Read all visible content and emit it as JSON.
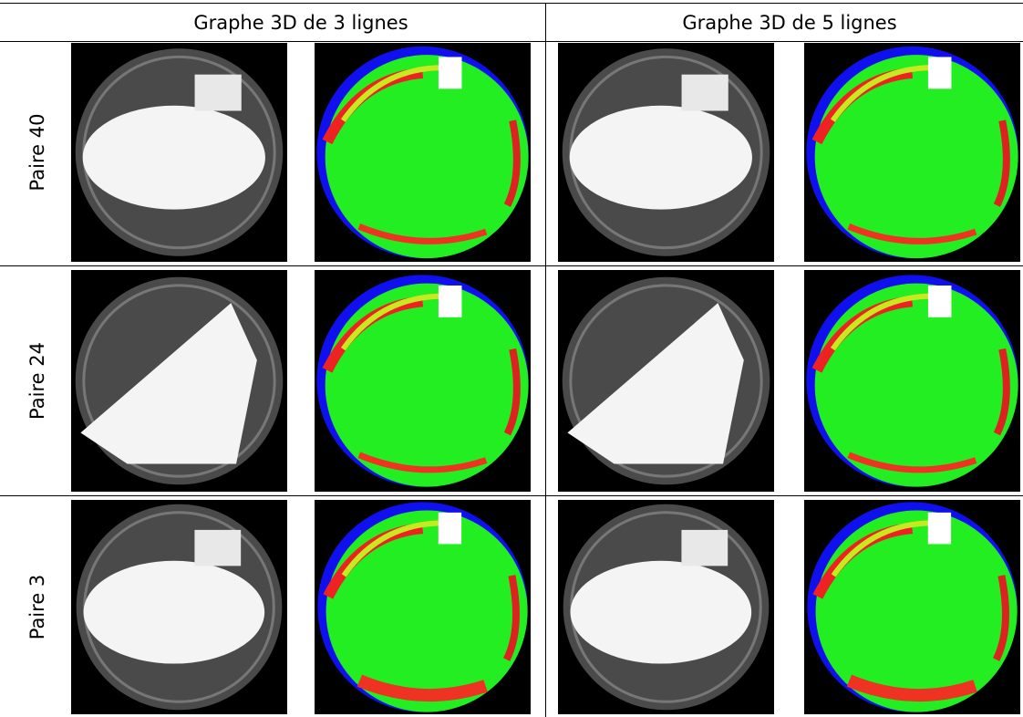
{
  "table": {
    "headers": [
      "Graphe 3D de 3 lignes",
      "Graphe 3D de 5 lignes"
    ],
    "rows": [
      "Paire 40",
      "Paire 24",
      "Paire 3"
    ]
  }
}
